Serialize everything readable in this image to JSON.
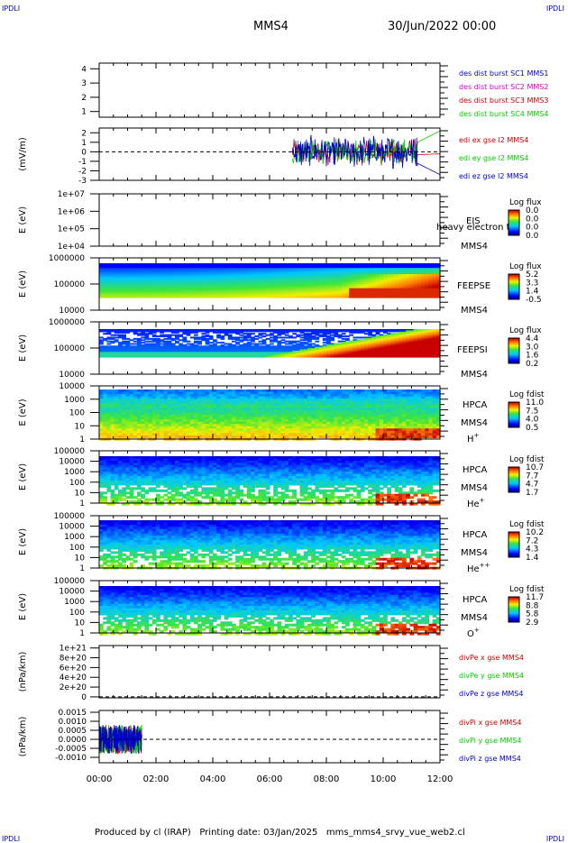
{
  "header": {
    "corner_tl": "IPDLI",
    "corner_tr": "IPDLI",
    "corner_bl": "IPDLI",
    "corner_br": "IPDLI",
    "title": "MMS4",
    "datetime": "30/Jun/2022 00:00"
  },
  "footer": "Produced by cl (IRAP)   Printing date: 03/Jan/2025   mms_mms4_srvy_vue_web2.cl",
  "chart_data": {
    "type": "multi-panel",
    "x_ticks": [
      "00:00",
      "02:00",
      "04:00",
      "06:00",
      "08:00",
      "10:00",
      "12:00"
    ],
    "xlim_hours": [
      0,
      12
    ],
    "panels": [
      {
        "id": "des-dist",
        "kind": "line",
        "ylabel": "",
        "yticks": [
          "1",
          "2",
          "3",
          "4"
        ],
        "yticks_val": [
          1,
          2,
          3,
          4
        ],
        "ylim": [
          0.6,
          4.4
        ],
        "legend": [
          {
            "text": "des dist burst SC1 MMS1",
            "color": "#0000cc"
          },
          {
            "text": "des dist burst SC2 MMS2",
            "color": "#cc00cc"
          },
          {
            "text": "des dist burst SC3 MMS3",
            "color": "#cc0000"
          },
          {
            "text": "des dist burst SC4 MMS4",
            "color": "#00cc00"
          }
        ],
        "series": []
      },
      {
        "id": "edi-e",
        "kind": "line",
        "ylabel": "(mV/m)",
        "yticks": [
          "-3",
          "-2",
          "-1",
          "0",
          "1",
          "2"
        ],
        "yticks_val": [
          -3,
          -2,
          -1,
          0,
          1,
          2
        ],
        "ylim": [
          -3,
          2.5
        ],
        "zero_line": true,
        "legend": [
          {
            "text": "edi ex gse l2 MMS4",
            "color": "#cc0000"
          },
          {
            "text": "edi ey gse l2 MMS4",
            "color": "#00cc00"
          },
          {
            "text": "edi ez gse l2 MMS4",
            "color": "#0000cc"
          }
        ],
        "data_range_hours": [
          6.8,
          12.0
        ]
      },
      {
        "id": "eis",
        "kind": "spectrogram-empty",
        "ylabel": "E (eV)",
        "yticks": [
          "1e+04",
          "1e+05",
          "1e+06",
          "1e+07"
        ],
        "log_range": [
          4,
          7
        ],
        "labels": [
          "EIS",
          "heavy electron to",
          "MMS4"
        ],
        "colorbar": {
          "title": "Log flux",
          "ticks": [
            "0.0",
            "0.0",
            "0.0",
            "0.0"
          ]
        }
      },
      {
        "id": "feepse",
        "kind": "spectrogram",
        "ylabel": "E (eV)",
        "yticks": [
          "10000",
          "100000",
          "1000000"
        ],
        "log_range": [
          4,
          6
        ],
        "labels": [
          "FEEPSE",
          "MMS4"
        ],
        "colorbar": {
          "title": "Log flux",
          "ticks": [
            "5.2",
            "3.3",
            "1.4",
            "-0.5"
          ]
        }
      },
      {
        "id": "feepsi",
        "kind": "spectrogram",
        "ylabel": "E (eV)",
        "yticks": [
          "10000",
          "100000",
          "1000000"
        ],
        "log_range": [
          4,
          6
        ],
        "labels": [
          "FEEPSI",
          "MMS4"
        ],
        "colorbar": {
          "title": "Log flux",
          "ticks": [
            "4.4",
            "3.0",
            "1.6",
            "0.2"
          ]
        }
      },
      {
        "id": "hpca-h",
        "kind": "spectrogram",
        "ylabel": "E (eV)",
        "yticks": [
          "1",
          "10",
          "100",
          "1000",
          "10000"
        ],
        "log_range": [
          0,
          4.6
        ],
        "labels": [
          "HPCA",
          "MMS4",
          "H+"
        ],
        "colorbar": {
          "title": "Log fdist",
          "ticks": [
            "11.0",
            "7.5",
            "4.0",
            "0.5"
          ]
        }
      },
      {
        "id": "hpca-he",
        "kind": "spectrogram",
        "ylabel": "E (eV)",
        "yticks": [
          "1",
          "10",
          "100",
          "1000",
          "10000",
          "100000"
        ],
        "log_range": [
          0,
          5
        ],
        "labels": [
          "HPCA",
          "MMS4",
          "He+"
        ],
        "colorbar": {
          "title": "Log fdist",
          "ticks": [
            "10.7",
            "7.7",
            "4.7",
            "1.7"
          ]
        }
      },
      {
        "id": "hpca-hepp",
        "kind": "spectrogram",
        "ylabel": "E (eV)",
        "yticks": [
          "1",
          "10",
          "100",
          "1000",
          "10000",
          "100000"
        ],
        "log_range": [
          0,
          5
        ],
        "labels": [
          "HPCA",
          "MMS4",
          "He++"
        ],
        "colorbar": {
          "title": "Log fdist",
          "ticks": [
            "10.2",
            "7.2",
            "4.3",
            "1.4"
          ]
        }
      },
      {
        "id": "hpca-o",
        "kind": "spectrogram",
        "ylabel": "E (eV)",
        "yticks": [
          "1",
          "10",
          "100",
          "1000",
          "10000",
          "100000"
        ],
        "log_range": [
          0,
          5
        ],
        "labels": [
          "HPCA",
          "MMS4",
          "O+"
        ],
        "colorbar": {
          "title": "Log fdist",
          "ticks": [
            "11.7",
            "8.8",
            "5.8",
            "2.9"
          ]
        }
      },
      {
        "id": "divpe",
        "kind": "line",
        "ylabel": "(nPa/km)",
        "yticks": [
          "0",
          "2e+20",
          "4e+20",
          "6e+20",
          "8e+20",
          "1e+21"
        ],
        "yticks_val": [
          0,
          2,
          4,
          6,
          8,
          10
        ],
        "ylim": [
          -0.2,
          10.5
        ],
        "zero_line": true,
        "legend": [
          {
            "text": "divPe x gse MMS4",
            "color": "#cc0000"
          },
          {
            "text": "divPe y gse MMS4",
            "color": "#00cc00"
          },
          {
            "text": "divPe z gse MMS4",
            "color": "#0000cc"
          }
        ]
      },
      {
        "id": "divpi",
        "kind": "line",
        "ylabel": "(nPa/km)",
        "yticks": [
          "-0.0010",
          "-0.0005",
          "0.0000",
          "0.0005",
          "0.0010",
          "0.0015"
        ],
        "yticks_val": [
          -0.001,
          -0.0005,
          0,
          0.0005,
          0.001,
          0.0015
        ],
        "ylim": [
          -0.0013,
          0.0016
        ],
        "zero_line": true,
        "legend": [
          {
            "text": "divPi x gse MMS4",
            "color": "#cc0000"
          },
          {
            "text": "divPi y gse MMS4",
            "color": "#00cc00"
          },
          {
            "text": "divPi z gse MMS4",
            "color": "#0000cc"
          }
        ],
        "data_range_hours": [
          0.0,
          1.5
        ]
      }
    ]
  }
}
